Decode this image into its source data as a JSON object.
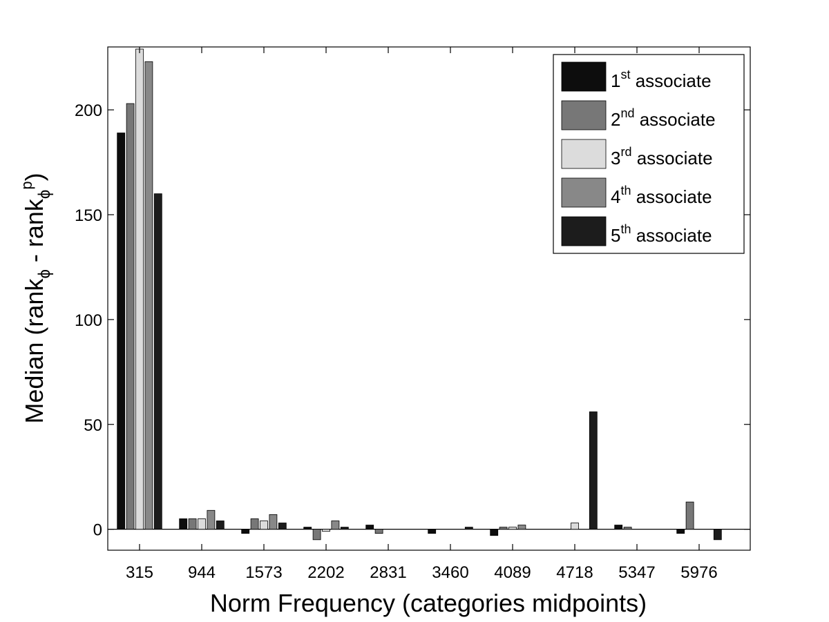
{
  "chart_data": {
    "type": "bar",
    "title": "",
    "xlabel": "Norm Frequency (categories midpoints)",
    "ylabel": {
      "prefix": "Median (rank",
      "sub1": "ϕ",
      "middle": " - rank",
      "sub2": "ϕ",
      "sup2": "p",
      "suffix": ")"
    },
    "categories": [
      "315",
      "944",
      "1573",
      "2202",
      "2831",
      "3460",
      "4089",
      "4718",
      "5347",
      "5976"
    ],
    "ylim": [
      -10,
      230
    ],
    "yticks": [
      0,
      50,
      100,
      150,
      200
    ],
    "legend_position": "top-right",
    "series": [
      {
        "name": {
          "base": "1",
          "sup": "st",
          "rest": " associate"
        },
        "color": "#0d0d0d",
        "values": [
          189,
          5,
          -2,
          1,
          2,
          -2,
          -3,
          0,
          2,
          -2
        ]
      },
      {
        "name": {
          "base": "2",
          "sup": "nd",
          "rest": " associate"
        },
        "color": "#777777",
        "values": [
          203,
          5,
          5,
          -5,
          -2,
          0,
          1,
          0,
          1,
          13
        ]
      },
      {
        "name": {
          "base": "3",
          "sup": "rd",
          "rest": " associate"
        },
        "color": "#dcdcdc",
        "values": [
          229,
          5,
          4,
          -1,
          0,
          0,
          1,
          3,
          0,
          0
        ]
      },
      {
        "name": {
          "base": "4",
          "sup": "th",
          "rest": " associate"
        },
        "color": "#888888",
        "values": [
          223,
          9,
          7,
          4,
          0,
          0,
          2,
          0,
          0,
          0
        ]
      },
      {
        "name": {
          "base": "5",
          "sup": "th",
          "rest": " associate"
        },
        "color": "#1c1c1c",
        "values": [
          160,
          4,
          3,
          1,
          0,
          1,
          0,
          56,
          0,
          -5
        ]
      }
    ]
  }
}
